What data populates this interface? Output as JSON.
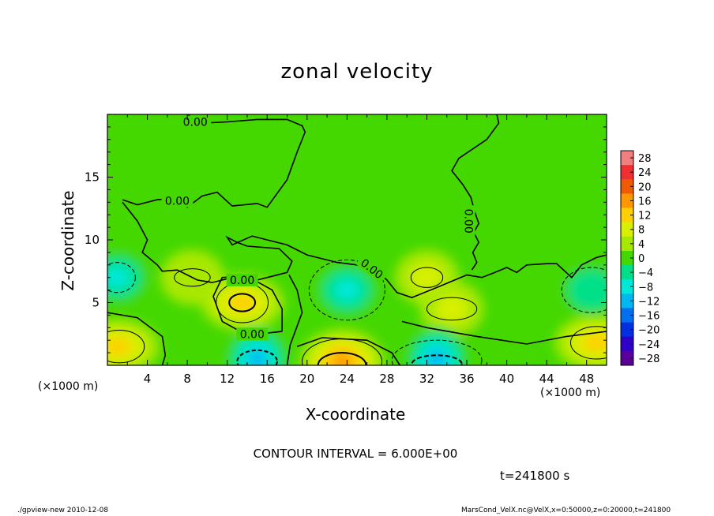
{
  "chart_data": {
    "type": "heatmap",
    "title": "zonal velocity",
    "xlabel": "X-coordinate",
    "ylabel": "Z-coordinate",
    "x_unit_label": "(×1000 m)",
    "xlim": [
      0,
      50
    ],
    "ylim": [
      0,
      20
    ],
    "x_ticks": [
      4,
      8,
      12,
      16,
      20,
      24,
      28,
      32,
      36,
      40,
      44,
      48
    ],
    "y_ticks": [
      5,
      10,
      15
    ],
    "colorbar": {
      "levels": [
        28,
        24,
        20,
        16,
        12,
        8,
        4,
        0,
        -4,
        -8,
        -12,
        -16,
        -20,
        -24,
        -28
      ],
      "labels": [
        "28",
        "24",
        "20",
        "16",
        "12",
        "8",
        "4",
        "0",
        "−4",
        "−8",
        "−12",
        "−16",
        "−20",
        "−24",
        "−28"
      ],
      "colors": [
        "#f08080",
        "#f03030",
        "#f05a00",
        "#ff9800",
        "#ffd000",
        "#d8f000",
        "#a8e800",
        "#44d800",
        "#00e088",
        "#00e8d8",
        "#00b8f0",
        "#0070f0",
        "#0030e0",
        "#3000c8",
        "#5a0098"
      ]
    },
    "contour_labels": [
      "0.00",
      "0.00",
      "0.00",
      "0.00",
      "0.00",
      "0.00"
    ],
    "features": [
      {
        "kind": "max",
        "x": 13.5,
        "z": 5.0,
        "value": 10
      },
      {
        "kind": "max",
        "x": 23.5,
        "z": 0.3,
        "value": 14
      },
      {
        "kind": "max",
        "x": 1.0,
        "z": 1.5,
        "value": 10
      },
      {
        "kind": "max",
        "x": 49.0,
        "z": 1.8,
        "value": 10
      },
      {
        "kind": "max",
        "x": 32.0,
        "z": 7.0,
        "value": 6
      },
      {
        "kind": "max",
        "x": 34.5,
        "z": 4.5,
        "value": 6
      },
      {
        "kind": "max",
        "x": 8.5,
        "z": 7.0,
        "value": 5
      },
      {
        "kind": "min",
        "x": 24.0,
        "z": 6.0,
        "value": -8
      },
      {
        "kind": "min",
        "x": 33.0,
        "z": 0.5,
        "value": -12
      },
      {
        "kind": "min",
        "x": 15.0,
        "z": 0.5,
        "value": -12
      },
      {
        "kind": "min",
        "x": 1.0,
        "z": 7.0,
        "value": -8
      },
      {
        "kind": "min",
        "x": 48.5,
        "z": 6.0,
        "value": -6
      }
    ],
    "contour_interval": "CONTOUR INTERVAL = 6.000E+00",
    "time": "t=241800 s"
  },
  "footer": {
    "left": "./gpview-new  2010-12-08",
    "right": "MarsCond_VelX.nc@VelX,x=0:50000,z=0:20000,t=241800"
  }
}
